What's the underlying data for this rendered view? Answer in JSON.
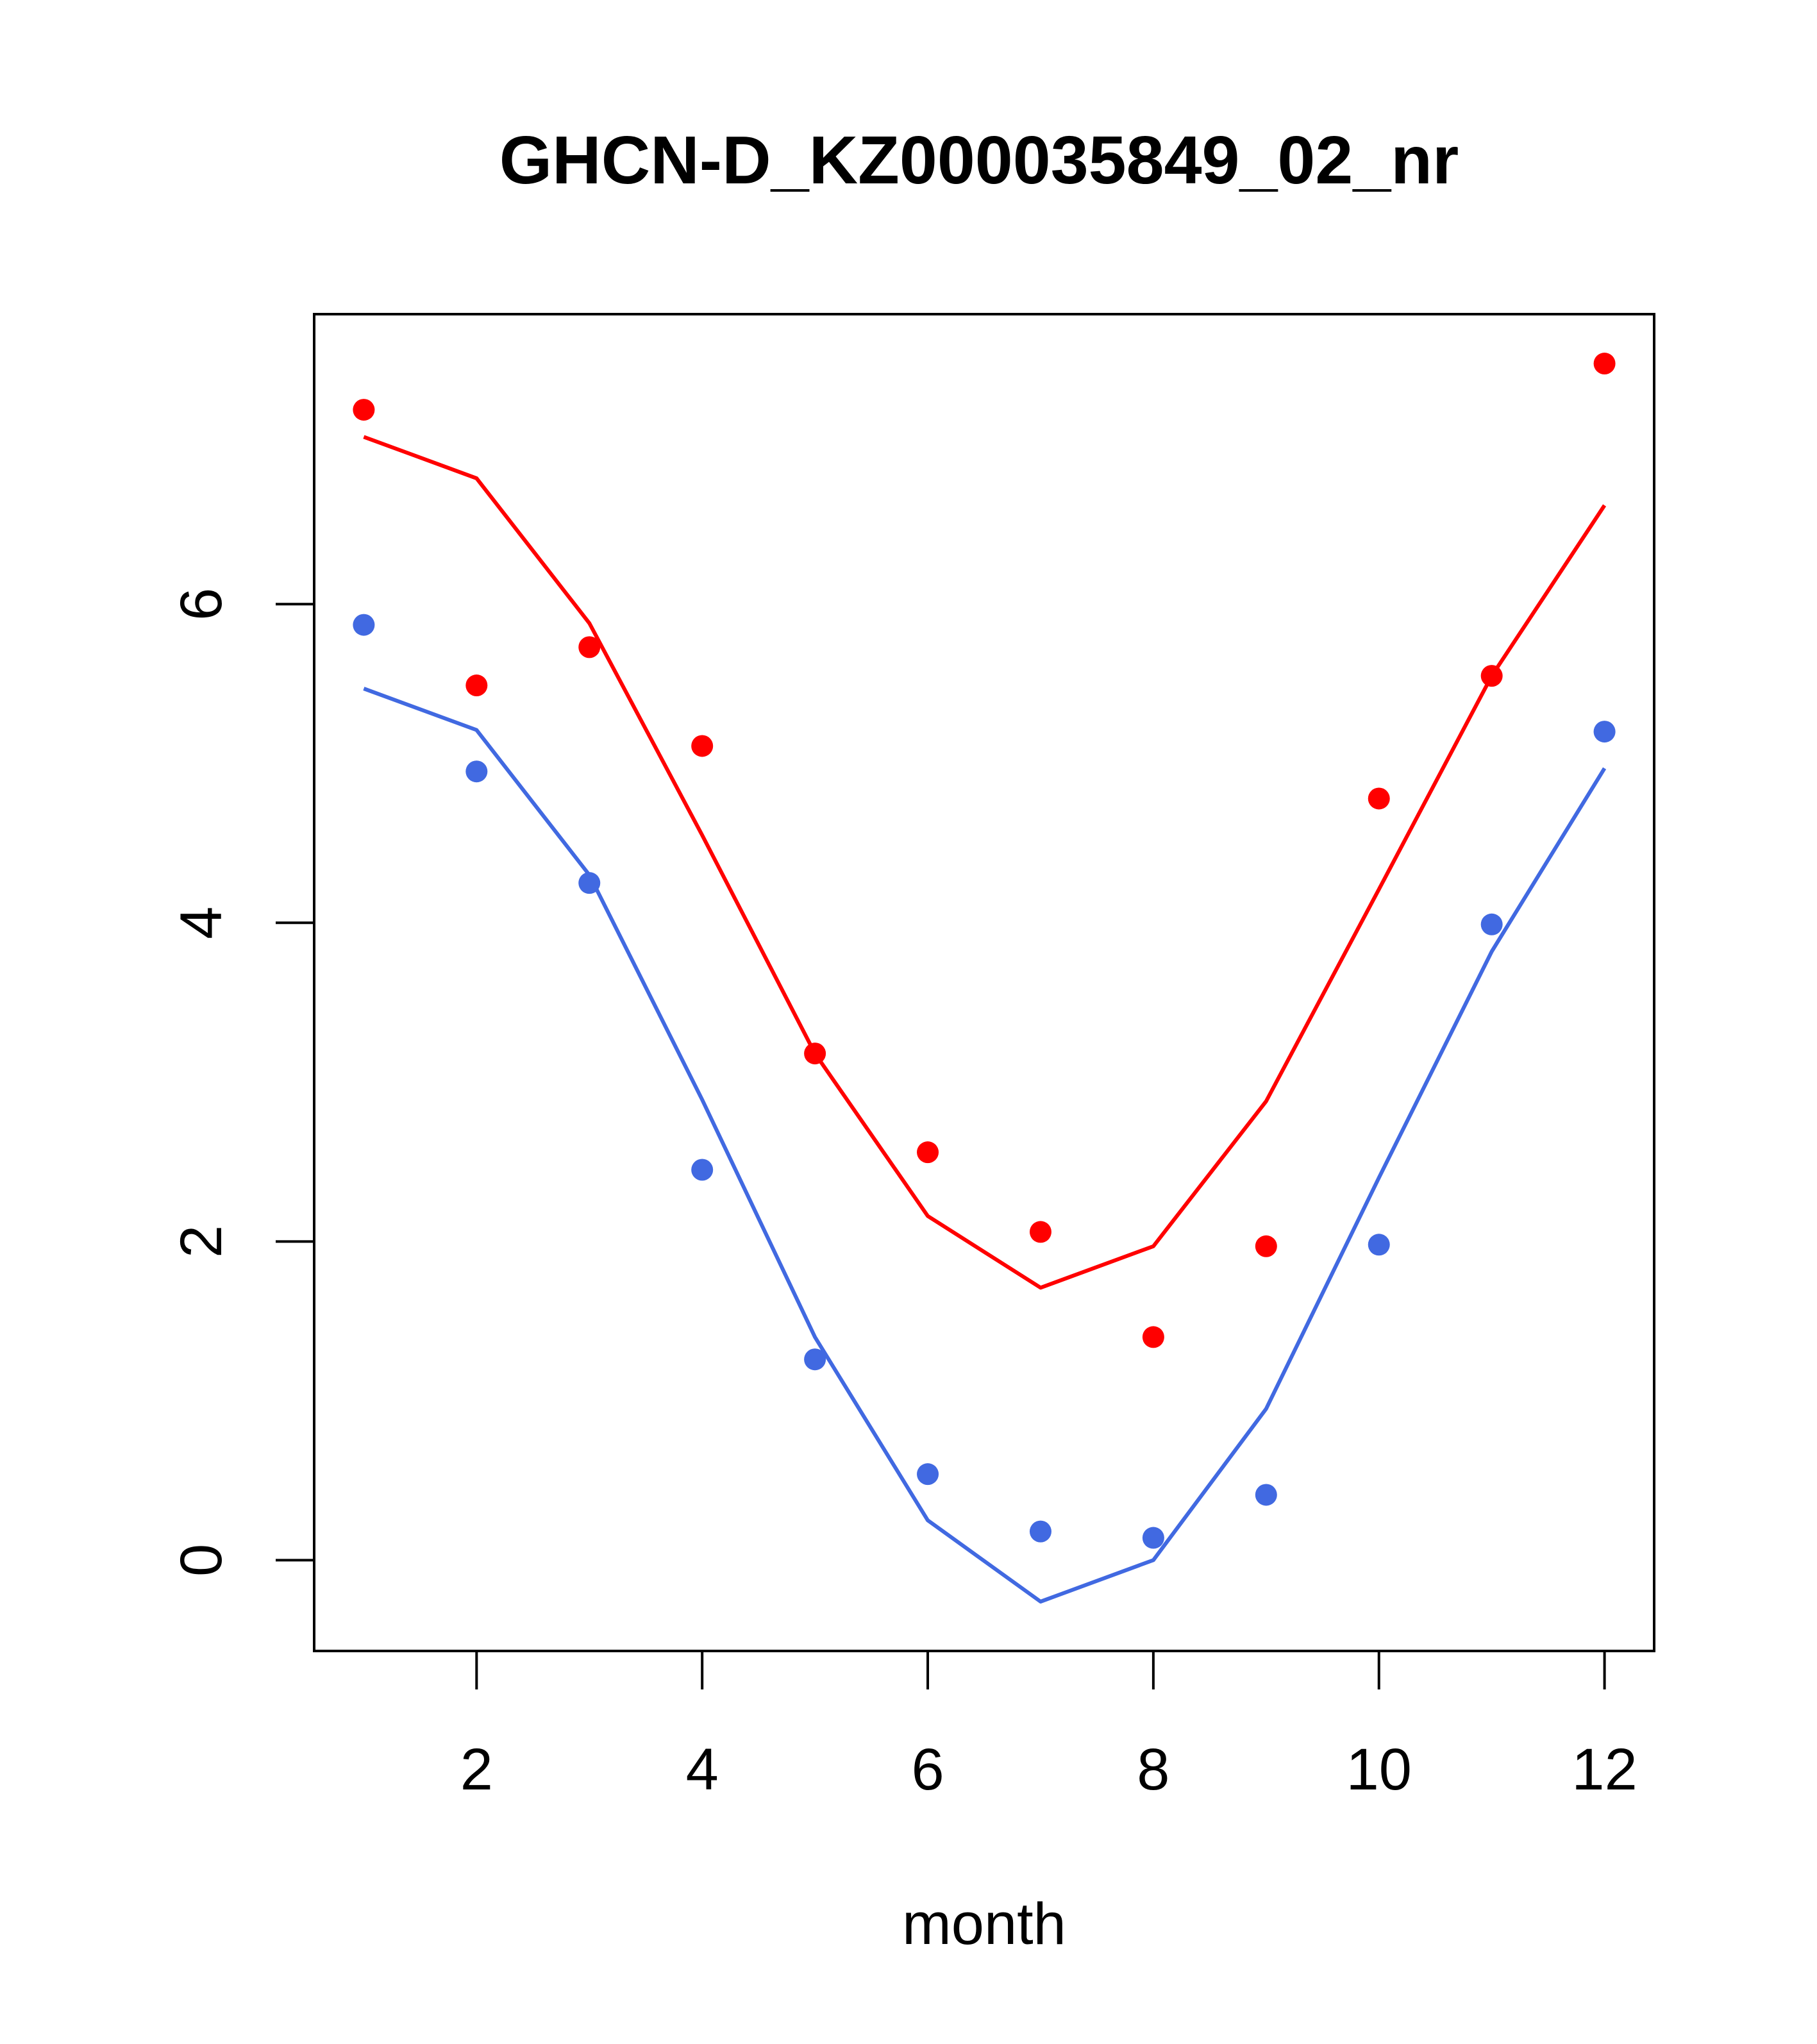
{
  "chart_data": {
    "type": "line",
    "title": "GHCN-D_KZ000035849_02_nr",
    "xlabel": "month",
    "ylabel": "",
    "xlim": [
      0.56,
      12.44
    ],
    "ylim": [
      -0.57,
      7.82
    ],
    "xticks": [
      2,
      4,
      6,
      8,
      10,
      12
    ],
    "yticks": [
      0,
      2,
      4,
      6
    ],
    "grid": false,
    "legend": "none",
    "x": [
      1,
      2,
      3,
      4,
      5,
      6,
      7,
      8,
      9,
      10,
      11,
      12
    ],
    "series": [
      {
        "color": "#ff0000",
        "points": [
          7.22,
          5.49,
          5.73,
          5.11,
          3.18,
          2.56,
          2.06,
          1.4,
          1.97,
          4.78,
          5.55,
          7.51
        ],
        "line": [
          7.05,
          6.79,
          5.88,
          4.55,
          3.18,
          2.16,
          1.71,
          1.97,
          2.88,
          4.21,
          5.55,
          6.62
        ]
      },
      {
        "color": "#4169e1",
        "points": [
          5.87,
          4.95,
          4.25,
          2.45,
          1.26,
          0.54,
          0.18,
          0.14,
          0.41,
          1.98,
          3.99,
          5.2
        ],
        "line": [
          5.47,
          5.21,
          4.3,
          2.89,
          1.4,
          0.25,
          -0.26,
          0.0,
          0.95,
          2.4,
          3.82,
          4.97
        ]
      }
    ]
  }
}
